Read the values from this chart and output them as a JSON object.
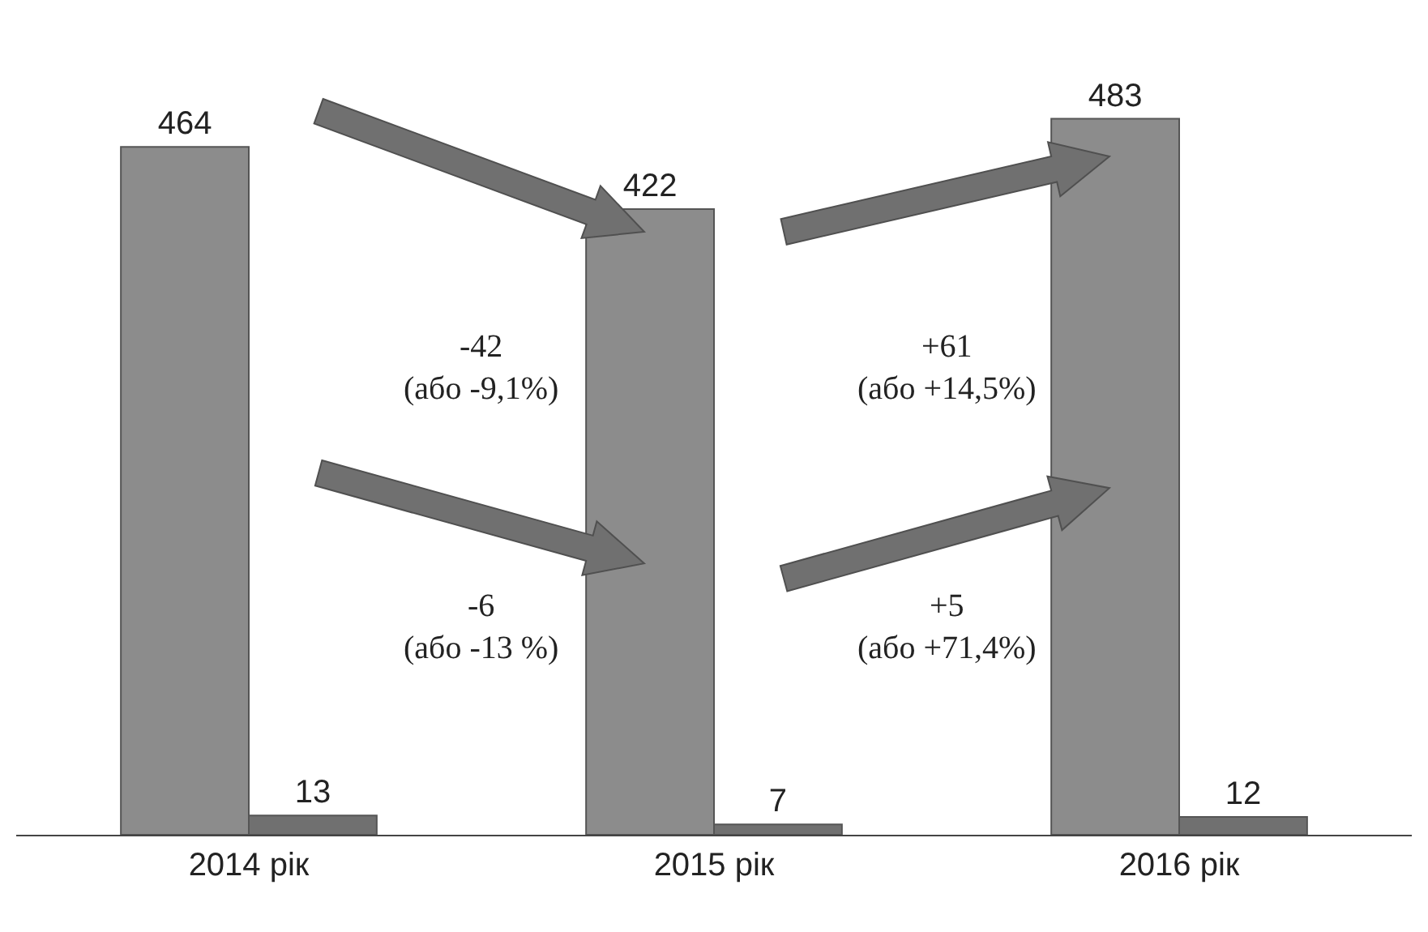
{
  "chart_data": {
    "type": "bar",
    "categories": [
      "2014 рік",
      "2015 рік",
      "2016 рік"
    ],
    "series": [
      {
        "color": "#8c8c8c",
        "values": [
          464,
          422,
          483
        ]
      },
      {
        "color": "#707070",
        "values": [
          13,
          7,
          12
        ]
      }
    ],
    "data_labels": true,
    "annotations": [
      "-42\n(або -9,1%)",
      "-6\n(або -13 %)",
      "+61\n(або +14,5%)",
      "+5\n(або +71,4%)"
    ]
  }
}
